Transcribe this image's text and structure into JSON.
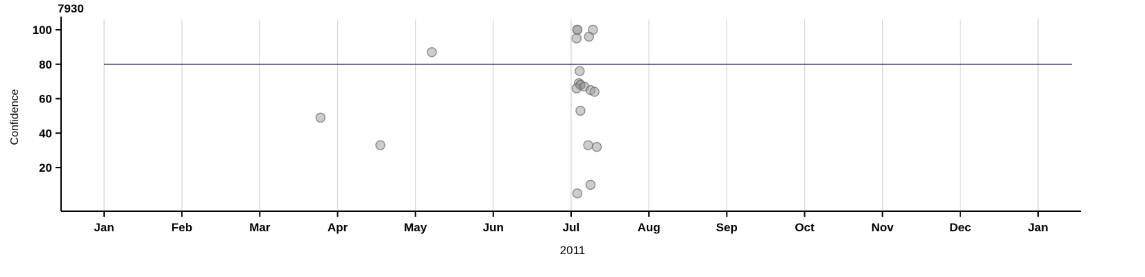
{
  "chart_data": {
    "type": "scatter",
    "title": "7930",
    "xlabel": "2011",
    "ylabel": "Confidence",
    "x_tick_labels": [
      "Jan",
      "Feb",
      "Mar",
      "Apr",
      "May",
      "Jun",
      "Jul",
      "Aug",
      "Sep",
      "Oct",
      "Nov",
      "Dec",
      "Jan"
    ],
    "y_ticks": [
      20,
      40,
      60,
      80,
      100
    ],
    "xlim_months": [
      0,
      12
    ],
    "ylim": [
      0,
      105
    ],
    "grid": "vertical-only",
    "legend": "none",
    "reference_line": {
      "y": 80,
      "color": "#2e2e66"
    },
    "colors": {
      "point_fill": "#999999",
      "point_stroke": "#6e6e6e",
      "gridline": "#d6d6d6",
      "axis": "#000000"
    },
    "points": [
      {
        "x": 2.78,
        "y": 49
      },
      {
        "x": 3.55,
        "y": 33
      },
      {
        "x": 4.21,
        "y": 87
      },
      {
        "x": 6.08,
        "y": 100
      },
      {
        "x": 6.08,
        "y": 100
      },
      {
        "x": 6.07,
        "y": 95
      },
      {
        "x": 6.28,
        "y": 100
      },
      {
        "x": 6.23,
        "y": 96
      },
      {
        "x": 6.11,
        "y": 76
      },
      {
        "x": 6.1,
        "y": 69
      },
      {
        "x": 6.12,
        "y": 68
      },
      {
        "x": 6.12,
        "y": 68
      },
      {
        "x": 6.07,
        "y": 66
      },
      {
        "x": 6.17,
        "y": 67
      },
      {
        "x": 6.25,
        "y": 65
      },
      {
        "x": 6.3,
        "y": 64
      },
      {
        "x": 6.12,
        "y": 53
      },
      {
        "x": 6.22,
        "y": 33
      },
      {
        "x": 6.33,
        "y": 32
      },
      {
        "x": 6.25,
        "y": 10
      },
      {
        "x": 6.08,
        "y": 5
      }
    ]
  }
}
